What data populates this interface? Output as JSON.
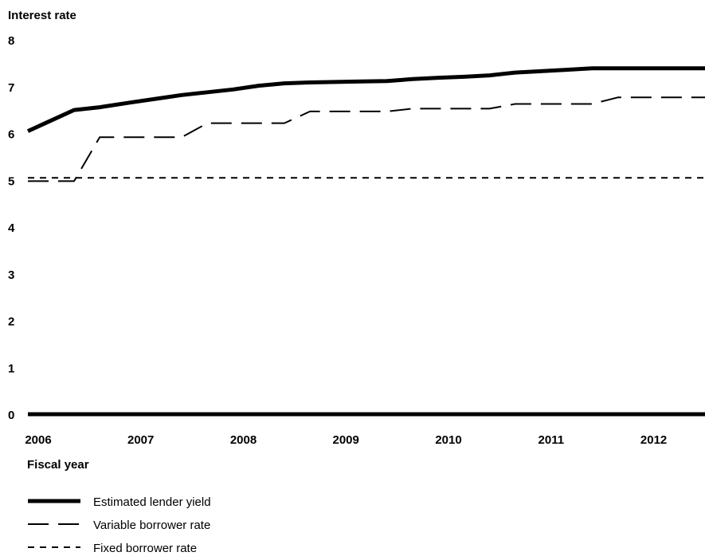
{
  "chart_data": {
    "type": "line",
    "ylabel": "Interest rate",
    "xlabel": "Fiscal year",
    "ylim": [
      0,
      8
    ],
    "y_ticks": [
      0,
      1,
      2,
      3,
      4,
      5,
      6,
      7,
      8
    ],
    "x_range": [
      2006,
      2012.6
    ],
    "x_ticks": [
      "2006",
      "2007",
      "2008",
      "2009",
      "2010",
      "2011",
      "2012"
    ],
    "series": [
      {
        "name": "Estimated lender yield",
        "style": "solid-thick",
        "color": "#000000",
        "points": [
          [
            2006.0,
            6.05
          ],
          [
            2006.2,
            6.25
          ],
          [
            2006.45,
            6.5
          ],
          [
            2006.7,
            6.56
          ],
          [
            2007.0,
            6.66
          ],
          [
            2007.25,
            6.74
          ],
          [
            2007.5,
            6.82
          ],
          [
            2007.75,
            6.88
          ],
          [
            2008.0,
            6.94
          ],
          [
            2008.25,
            7.02
          ],
          [
            2008.5,
            7.07
          ],
          [
            2008.75,
            7.09
          ],
          [
            2009.0,
            7.1
          ],
          [
            2009.25,
            7.11
          ],
          [
            2009.5,
            7.12
          ],
          [
            2009.75,
            7.16
          ],
          [
            2010.0,
            7.19
          ],
          [
            2010.25,
            7.21
          ],
          [
            2010.5,
            7.24
          ],
          [
            2010.75,
            7.3
          ],
          [
            2011.0,
            7.33
          ],
          [
            2011.25,
            7.36
          ],
          [
            2011.5,
            7.39
          ],
          [
            2011.75,
            7.39
          ],
          [
            2012.0,
            7.39
          ],
          [
            2012.25,
            7.39
          ],
          [
            2012.6,
            7.39
          ]
        ]
      },
      {
        "name": "Variable borrower rate",
        "style": "long-dash",
        "color": "#000000",
        "points": [
          [
            2006.0,
            4.98
          ],
          [
            2006.45,
            4.98
          ],
          [
            2006.7,
            5.92
          ],
          [
            2007.5,
            5.92
          ],
          [
            2007.75,
            6.22
          ],
          [
            2008.5,
            6.22
          ],
          [
            2008.75,
            6.47
          ],
          [
            2009.5,
            6.47
          ],
          [
            2009.75,
            6.53
          ],
          [
            2010.5,
            6.53
          ],
          [
            2010.75,
            6.63
          ],
          [
            2011.5,
            6.63
          ],
          [
            2011.75,
            6.77
          ],
          [
            2012.6,
            6.77
          ]
        ]
      },
      {
        "name": "Fixed borrower rate",
        "style": "short-dash",
        "color": "#000000",
        "points": [
          [
            2006.0,
            5.05
          ],
          [
            2012.6,
            5.05
          ]
        ]
      }
    ],
    "zero_line": {
      "value": 0,
      "style": "thick"
    },
    "grid": false,
    "legend_position": "bottom-left"
  }
}
